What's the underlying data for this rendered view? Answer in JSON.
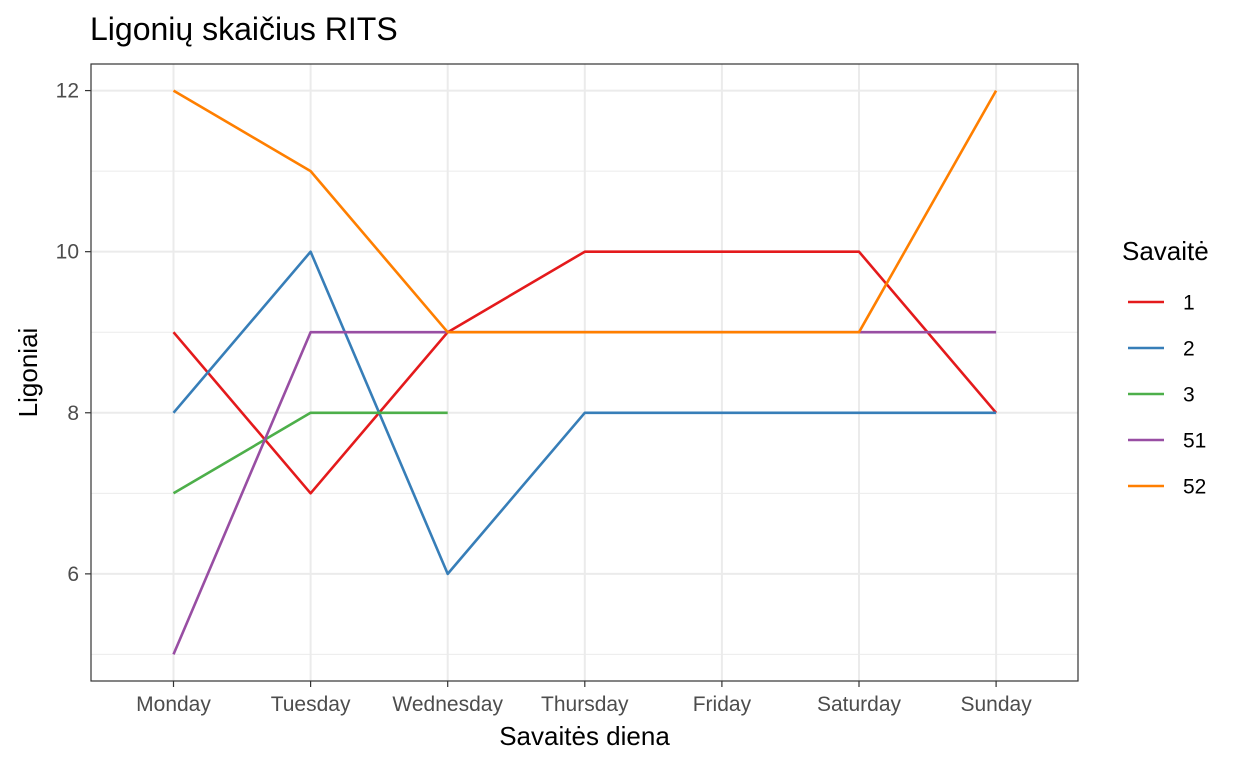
{
  "chart_data": {
    "type": "line",
    "title": "Ligonių skaičius RITS",
    "xlabel": "Savaitės diena",
    "ylabel": "Ligoniai",
    "categories": [
      "Monday",
      "Tuesday",
      "Wednesday",
      "Thursday",
      "Friday",
      "Saturday",
      "Sunday"
    ],
    "ylim": [
      4.67,
      12.33
    ],
    "yticks": [
      6,
      8,
      10,
      12
    ],
    "yticks_labels": [
      "6",
      "8",
      "10",
      "12"
    ],
    "grid": true,
    "legend": {
      "title": "Savaitė",
      "position": "right"
    },
    "series": [
      {
        "name": "1",
        "color": "#E41A1C",
        "values": [
          9,
          7,
          9,
          10,
          10,
          10,
          8
        ]
      },
      {
        "name": "2",
        "color": "#377EB8",
        "values": [
          8,
          10,
          6,
          8,
          8,
          8,
          8
        ]
      },
      {
        "name": "3",
        "color": "#4DAF4A",
        "values": [
          7,
          8,
          8,
          null,
          null,
          null,
          null
        ]
      },
      {
        "name": "51",
        "color": "#984EA3",
        "values": [
          5,
          9,
          9,
          9,
          9,
          9,
          9
        ]
      },
      {
        "name": "52",
        "color": "#FF7F00",
        "values": [
          12,
          11,
          9,
          9,
          9,
          9,
          12
        ]
      }
    ]
  }
}
